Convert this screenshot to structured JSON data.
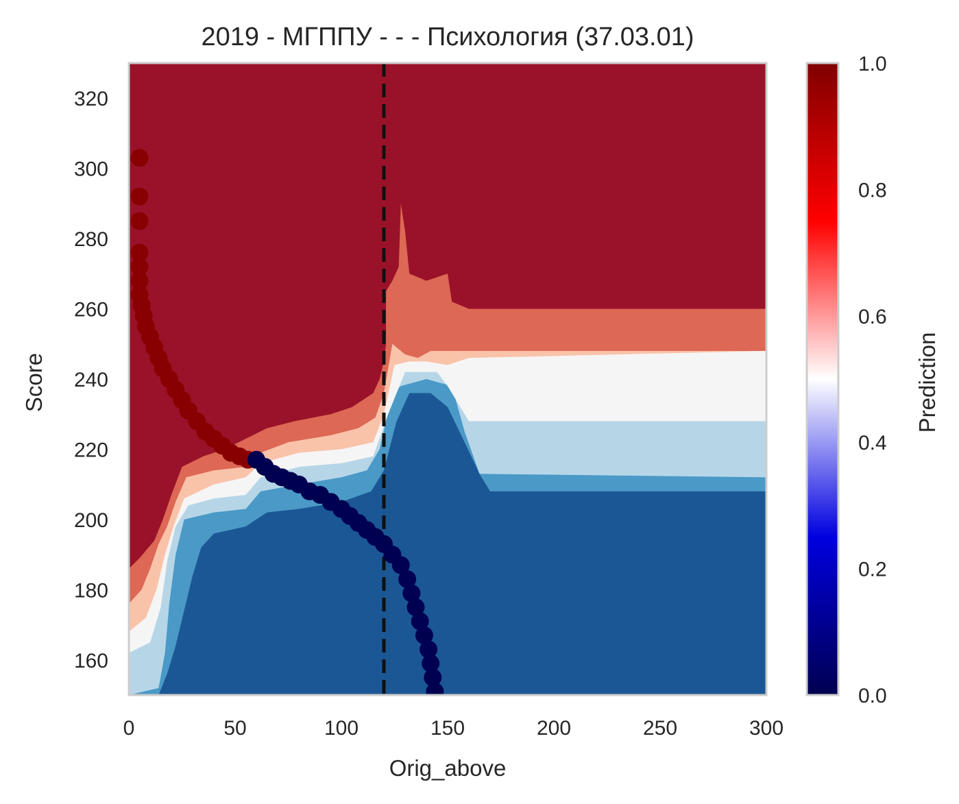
{
  "chart_data": {
    "type": "heatmap",
    "title": "2019 - МГППУ - - - Психология (37.03.01)",
    "xlabel": "Orig_above",
    "ylabel": "Score",
    "xlim": [
      0,
      300
    ],
    "ylim": [
      150,
      330
    ],
    "x_ticks": [
      "0",
      "50",
      "100",
      "150",
      "200",
      "250",
      "300"
    ],
    "y_ticks": [
      "160",
      "180",
      "200",
      "220",
      "240",
      "260",
      "280",
      "300",
      "320"
    ],
    "grid": false,
    "threshold_line": {
      "x": 120,
      "style": "dashed",
      "color": "#111111"
    },
    "contour_levels": [
      {
        "range": [
          0.0,
          0.2
        ],
        "color": "#1b5795"
      },
      {
        "range": [
          0.2,
          0.3
        ],
        "color": "#4a99c6"
      },
      {
        "range": [
          0.3,
          0.4
        ],
        "color": "#b6d6e8"
      },
      {
        "range": [
          0.4,
          0.5
        ],
        "color": "#f5f5f5"
      },
      {
        "range": [
          0.5,
          0.6
        ],
        "color": "#f9c3aa"
      },
      {
        "range": [
          0.6,
          0.7
        ],
        "color": "#dd6855"
      },
      {
        "range": [
          0.7,
          1.0
        ],
        "color": "#9a1229"
      }
    ],
    "decision_regions": [
      {
        "label": "red (≈1.0)",
        "color": "#9a1229",
        "boundary": [
          [
            0,
            186
          ],
          [
            5,
            189
          ],
          [
            12,
            194
          ],
          [
            16,
            200
          ],
          [
            20,
            207
          ],
          [
            25,
            215
          ],
          [
            35,
            218
          ],
          [
            45,
            220
          ],
          [
            55,
            223
          ],
          [
            65,
            226
          ],
          [
            78,
            228
          ],
          [
            95,
            230
          ],
          [
            105,
            232
          ],
          [
            115,
            236
          ],
          [
            118,
            240
          ],
          [
            120,
            245
          ],
          [
            121,
            250
          ],
          [
            121,
            265
          ],
          [
            124,
            268
          ],
          [
            127,
            272
          ],
          [
            128,
            290
          ],
          [
            130,
            282
          ],
          [
            132,
            270
          ],
          [
            140,
            268
          ],
          [
            150,
            270
          ],
          [
            152,
            262
          ],
          [
            160,
            260
          ],
          [
            300,
            260
          ]
        ]
      },
      {
        "label": "orange",
        "color": "#dd6855",
        "boundary": [
          [
            0,
            176
          ],
          [
            6,
            180
          ],
          [
            10,
            186
          ],
          [
            14,
            193
          ],
          [
            18,
            198
          ],
          [
            22,
            205
          ],
          [
            27,
            212
          ],
          [
            40,
            214
          ],
          [
            55,
            215
          ],
          [
            62,
            219
          ],
          [
            75,
            222
          ],
          [
            95,
            224
          ],
          [
            108,
            226
          ],
          [
            116,
            229
          ],
          [
            120,
            236
          ],
          [
            124,
            250
          ],
          [
            130,
            247
          ],
          [
            136,
            246
          ],
          [
            142,
            248
          ],
          [
            150,
            248
          ],
          [
            160,
            248
          ],
          [
            200,
            248
          ],
          [
            300,
            248
          ]
        ]
      },
      {
        "label": "peach",
        "color": "#f9c3aa",
        "boundary": [
          [
            0,
            168
          ],
          [
            8,
            172
          ],
          [
            13,
            180
          ],
          [
            17,
            190
          ],
          [
            21,
            198
          ],
          [
            26,
            206
          ],
          [
            40,
            210
          ],
          [
            55,
            212
          ],
          [
            62,
            216
          ],
          [
            80,
            219
          ],
          [
            100,
            220
          ],
          [
            115,
            222
          ],
          [
            120,
            230
          ],
          [
            125,
            244
          ],
          [
            132,
            245
          ],
          [
            140,
            245
          ],
          [
            150,
            244
          ],
          [
            160,
            246
          ],
          [
            300,
            248
          ]
        ]
      },
      {
        "label": "light",
        "color": "#f5f5f5",
        "boundary": [
          [
            0,
            162
          ],
          [
            10,
            165
          ],
          [
            15,
            175
          ],
          [
            18,
            188
          ],
          [
            22,
            198
          ],
          [
            28,
            204
          ],
          [
            40,
            206
          ],
          [
            55,
            207
          ],
          [
            62,
            212
          ],
          [
            80,
            215
          ],
          [
            100,
            216
          ],
          [
            115,
            218
          ],
          [
            122,
            230
          ],
          [
            130,
            242
          ],
          [
            145,
            242
          ],
          [
            150,
            238
          ],
          [
            160,
            228
          ],
          [
            300,
            228
          ]
        ]
      },
      {
        "label": "light blue",
        "color": "#b6d6e8",
        "boundary": [
          [
            0,
            150
          ],
          [
            14,
            152
          ],
          [
            17,
            162
          ],
          [
            19,
            176
          ],
          [
            22,
            190
          ],
          [
            26,
            200
          ],
          [
            40,
            202
          ],
          [
            55,
            203
          ],
          [
            62,
            208
          ],
          [
            80,
            210
          ],
          [
            100,
            212
          ],
          [
            112,
            214
          ],
          [
            118,
            220
          ],
          [
            124,
            236
          ],
          [
            128,
            238
          ],
          [
            140,
            240
          ],
          [
            152,
            238
          ],
          [
            158,
            225
          ],
          [
            165,
            213
          ],
          [
            300,
            212
          ]
        ]
      },
      {
        "label": "mid blue",
        "color": "#4a99c6",
        "boundary": [
          [
            14,
            150
          ],
          [
            18,
            156
          ],
          [
            22,
            164
          ],
          [
            26,
            174
          ],
          [
            30,
            184
          ],
          [
            34,
            192
          ],
          [
            40,
            196
          ],
          [
            55,
            198
          ],
          [
            65,
            202
          ],
          [
            80,
            203
          ],
          [
            100,
            205
          ],
          [
            114,
            208
          ],
          [
            120,
            214
          ],
          [
            126,
            228
          ],
          [
            132,
            236
          ],
          [
            142,
            236
          ],
          [
            150,
            232
          ],
          [
            158,
            222
          ],
          [
            165,
            213
          ],
          [
            170,
            208
          ],
          [
            300,
            208
          ]
        ]
      }
    ],
    "series": [
      {
        "name": "",
        "color": "#880000",
        "points": [
          [
            5,
            303
          ],
          [
            5,
            292
          ],
          [
            5,
            285
          ],
          [
            5,
            276
          ],
          [
            5,
            272
          ],
          [
            5,
            268
          ],
          [
            5,
            264
          ],
          [
            6,
            261
          ],
          [
            7,
            258
          ],
          [
            8,
            255
          ],
          [
            10,
            252
          ],
          [
            12,
            249
          ],
          [
            14,
            246
          ],
          [
            16,
            243
          ],
          [
            19,
            240
          ],
          [
            22,
            237
          ],
          [
            25,
            234
          ],
          [
            28,
            231
          ],
          [
            32,
            228
          ],
          [
            36,
            225
          ],
          [
            40,
            223
          ],
          [
            44,
            221
          ],
          [
            48,
            219
          ],
          [
            52,
            218
          ],
          [
            56,
            217
          ]
        ]
      },
      {
        "name": "",
        "color": "#000050",
        "points": [
          [
            60,
            217
          ],
          [
            64,
            215
          ],
          [
            68,
            213
          ],
          [
            72,
            212
          ],
          [
            76,
            211
          ],
          [
            80,
            210
          ],
          [
            85,
            208
          ],
          [
            90,
            207
          ],
          [
            95,
            205
          ],
          [
            100,
            203
          ],
          [
            104,
            201
          ],
          [
            108,
            199
          ],
          [
            112,
            197
          ],
          [
            116,
            195
          ],
          [
            120,
            193
          ],
          [
            124,
            190
          ],
          [
            128,
            187
          ],
          [
            131,
            183
          ],
          [
            133,
            179
          ],
          [
            135,
            175
          ],
          [
            137,
            171
          ],
          [
            139,
            167
          ],
          [
            141,
            163
          ],
          [
            142,
            159
          ],
          [
            143,
            155
          ],
          [
            144,
            151
          ]
        ]
      }
    ],
    "colorbar": {
      "label": "Prediction",
      "ticks": [
        "0.0",
        "0.2",
        "0.4",
        "0.6",
        "0.8",
        "1.0"
      ],
      "colors": [
        "#000050",
        "#0000e0",
        "#ffffff",
        "#ff0000",
        "#800000"
      ]
    }
  }
}
